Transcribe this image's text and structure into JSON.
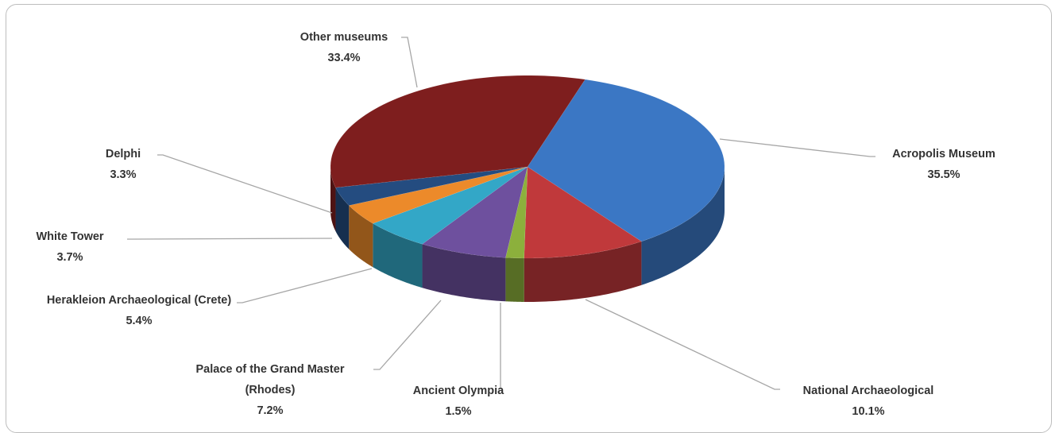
{
  "chart_data": {
    "type": "pie3d",
    "categories": [
      "Acropolis Museum",
      "National Archaeological",
      "Ancient Olympia",
      "Palace of the Grand Master (Rhodes)",
      "Herakleion Archaeological (Crete)",
      "White Tower",
      "Delphi",
      "Other museums"
    ],
    "values": [
      35.5,
      10.1,
      1.5,
      7.2,
      5.4,
      3.7,
      3.3,
      33.4
    ],
    "value_labels": [
      "35.5%",
      "10.1%",
      "1.5%",
      "7.2%",
      "5.4%",
      "3.7%",
      "3.3%",
      "33.4%"
    ],
    "colors": [
      "#3b77c4",
      "#c0393b",
      "#8cb03c",
      "#6e509e",
      "#33a7c7",
      "#ec8a2a",
      "#244c80",
      "#7e1e1e"
    ]
  }
}
